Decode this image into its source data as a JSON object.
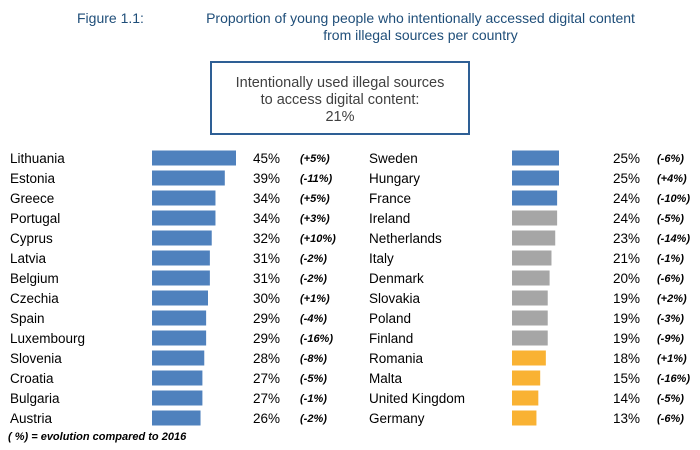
{
  "figure_label": "Figure 1.1:",
  "figure_title_line1": "Proportion of young people who intentionally accessed digital content",
  "figure_title_line2": "from illegal sources per country",
  "callout": {
    "line1": "Intentionally used illegal sources",
    "line2": "to access digital content:",
    "value": "21%"
  },
  "footnote": "( %) = evolution compared to 2016",
  "colors": {
    "blue": "#4f81bd",
    "grey": "#a6a6a6",
    "orange": "#f9b233"
  },
  "chart_data": {
    "type": "bar",
    "orientation": "horizontal",
    "unit": "%",
    "xlim": [
      0,
      45
    ],
    "columns": [
      {
        "rows": [
          {
            "country": "Lithuania",
            "value": 45,
            "change": "(+5%)",
            "color": "blue"
          },
          {
            "country": "Estonia",
            "value": 39,
            "change": "(-11%)",
            "color": "blue"
          },
          {
            "country": "Greece",
            "value": 34,
            "change": "(+5%)",
            "color": "blue"
          },
          {
            "country": "Portugal",
            "value": 34,
            "change": "(+3%)",
            "color": "blue"
          },
          {
            "country": "Cyprus",
            "value": 32,
            "change": "(+10%)",
            "color": "blue"
          },
          {
            "country": "Latvia",
            "value": 31,
            "change": "(-2%)",
            "color": "blue"
          },
          {
            "country": "Belgium",
            "value": 31,
            "change": "(-2%)",
            "color": "blue"
          },
          {
            "country": "Czechia",
            "value": 30,
            "change": "(+1%)",
            "color": "blue"
          },
          {
            "country": "Spain",
            "value": 29,
            "change": "(-4%)",
            "color": "blue"
          },
          {
            "country": "Luxembourg",
            "value": 29,
            "change": "(-16%)",
            "color": "blue"
          },
          {
            "country": "Slovenia",
            "value": 28,
            "change": "(-8%)",
            "color": "blue"
          },
          {
            "country": "Croatia",
            "value": 27,
            "change": "(-5%)",
            "color": "blue"
          },
          {
            "country": "Bulgaria",
            "value": 27,
            "change": "(-1%)",
            "color": "blue"
          },
          {
            "country": "Austria",
            "value": 26,
            "change": "(-2%)",
            "color": "blue"
          }
        ]
      },
      {
        "rows": [
          {
            "country": "Sweden",
            "value": 25,
            "change": "(-6%)",
            "color": "blue"
          },
          {
            "country": "Hungary",
            "value": 25,
            "change": "(+4%)",
            "color": "blue"
          },
          {
            "country": "France",
            "value": 24,
            "change": "(-10%)",
            "color": "blue"
          },
          {
            "country": "Ireland",
            "value": 24,
            "change": "(-5%)",
            "color": "grey"
          },
          {
            "country": "Netherlands",
            "value": 23,
            "change": "(-14%)",
            "color": "grey"
          },
          {
            "country": "Italy",
            "value": 21,
            "change": "(-1%)",
            "color": "grey"
          },
          {
            "country": "Denmark",
            "value": 20,
            "change": "(-6%)",
            "color": "grey"
          },
          {
            "country": "Slovakia",
            "value": 19,
            "change": "(+2%)",
            "color": "grey"
          },
          {
            "country": "Poland",
            "value": 19,
            "change": "(-3%)",
            "color": "grey"
          },
          {
            "country": "Finland",
            "value": 19,
            "change": "(-9%)",
            "color": "grey"
          },
          {
            "country": "Romania",
            "value": 18,
            "change": "(+1%)",
            "color": "orange"
          },
          {
            "country": "Malta",
            "value": 15,
            "change": "(-16%)",
            "color": "orange"
          },
          {
            "country": "United Kingdom",
            "value": 14,
            "change": "(-5%)",
            "color": "orange"
          },
          {
            "country": "Germany",
            "value": 13,
            "change": "(-6%)",
            "color": "orange"
          }
        ]
      }
    ]
  }
}
